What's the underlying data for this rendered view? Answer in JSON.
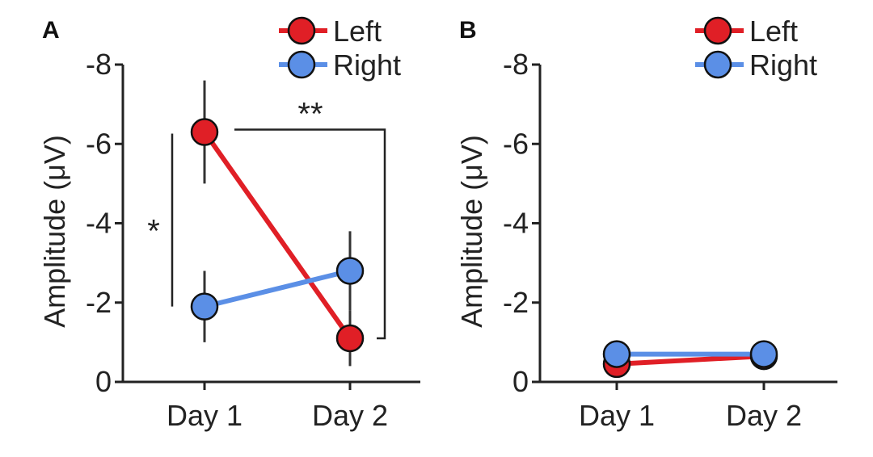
{
  "chart_data": [
    {
      "panel_label": "A",
      "type": "line",
      "ylabel": "Amplitude (μV)",
      "xlabel": "",
      "categories": [
        "Day 1",
        "Day 2"
      ],
      "ylim": [
        0,
        -8
      ],
      "y_inverted": true,
      "yticks": [
        0,
        -2,
        -4,
        -6,
        -8
      ],
      "ytick_labels": [
        "0",
        "-2",
        "-4",
        "-6",
        "-8"
      ],
      "legend_position": "top-right",
      "series": [
        {
          "name": "Left",
          "color": "#e01f26",
          "values": [
            -6.3,
            -1.1
          ],
          "error": [
            1.3,
            0.7
          ]
        },
        {
          "name": "Right",
          "color": "#5b8fe6",
          "values": [
            -1.9,
            -2.8
          ],
          "error": [
            0.9,
            1.0
          ]
        }
      ],
      "annotations": [
        {
          "text": "*",
          "type": "bracket-vertical",
          "between": "Left Day 1 vs Right Day 1"
        },
        {
          "text": "**",
          "type": "bracket-horizontal",
          "between": "Left Day 1 vs Left Day 2"
        }
      ]
    },
    {
      "panel_label": "B",
      "type": "line",
      "ylabel": "Amplitude (μV)",
      "xlabel": "",
      "categories": [
        "Day 1",
        "Day 2"
      ],
      "ylim": [
        0,
        -8
      ],
      "y_inverted": true,
      "yticks": [
        0,
        -2,
        -4,
        -6,
        -8
      ],
      "ytick_labels": [
        "0",
        "-2",
        "-4",
        "-6",
        "-8"
      ],
      "legend_position": "top-right",
      "series": [
        {
          "name": "Left",
          "color": "#e01f26",
          "values": [
            -0.45,
            -0.65
          ],
          "error": [
            0.2,
            0.2
          ]
        },
        {
          "name": "Right",
          "color": "#5b8fe6",
          "values": [
            -0.7,
            -0.7
          ],
          "error": [
            0.25,
            0.2
          ]
        }
      ],
      "annotations": []
    }
  ]
}
